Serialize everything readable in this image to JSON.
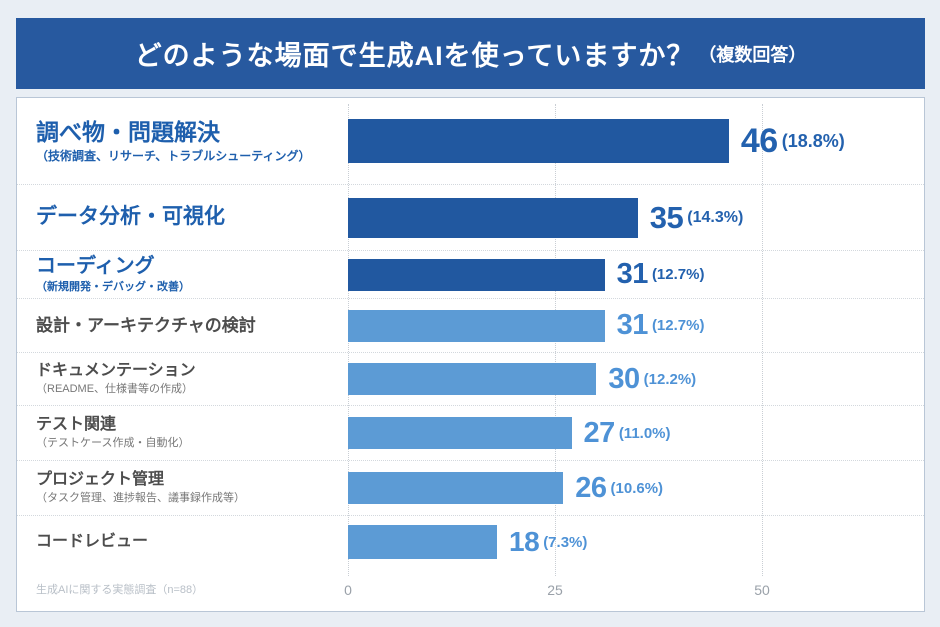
{
  "header": {
    "title": "どのような場面で生成AIを使っていますか？",
    "title_suffix": "（複数回答）",
    "bg_color": "#27599F",
    "text_color": "#ffffff"
  },
  "chart_data": {
    "type": "bar",
    "orientation": "horizontal",
    "title": "どのような場面で生成AIを使っていますか？（複数回答）",
    "xlabel": "",
    "ylabel": "",
    "xlim": [
      0,
      55
    ],
    "x_ticks": [
      0,
      25,
      50
    ],
    "grid": "vertical-dotted",
    "legend": "none",
    "categories": [
      "調べ物・問題解決",
      "データ分析・可視化",
      "コーディング",
      "設計・アーキテクチャの検討",
      "ドキュメンテーション",
      "テスト関連",
      "プロジェクト管理",
      "コードレビュー"
    ],
    "sublabels": [
      "（技術調査、リサーチ、トラブルシューティング）",
      "",
      "（新規開発・デバッグ・改善）",
      "",
      "（README、仕様書等の作成）",
      "（テストケース作成・自動化）",
      "（タスク管理、進捗報告、議事録作成等）",
      ""
    ],
    "values": [
      46,
      35,
      31,
      31,
      30,
      27,
      26,
      18
    ],
    "percent_labels": [
      "18.8%",
      "14.3%",
      "12.7%",
      "12.7%",
      "12.2%",
      "11.0%",
      "10.6%",
      "7.3%"
    ],
    "emphasized": [
      true,
      true,
      true,
      false,
      false,
      false,
      false,
      false
    ],
    "colors": {
      "bar_dark": "#2158A0",
      "bar_light": "#5C9BD5",
      "value_dark": "#2361AE",
      "value_light": "#4E92D6",
      "label_blue": "#1E5FAD",
      "label_gray": "#4D4D4D",
      "sublabel_gray": "#777777"
    },
    "source_note": "生成AIに関する実態調査（n=88）"
  }
}
